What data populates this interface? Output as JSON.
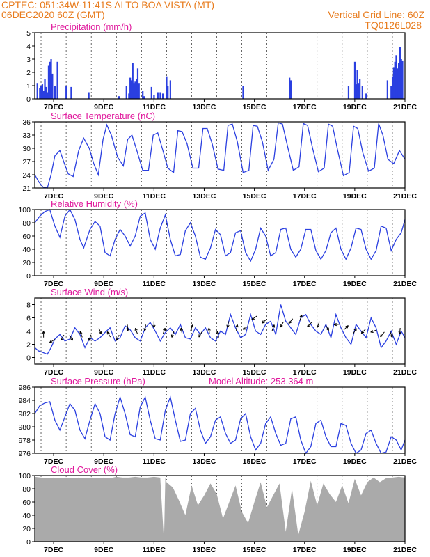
{
  "header": {
    "line1_left": "CPTEC:  051:34W-11:41S  ALTO BOA VISTA (MT)",
    "line2_left": "06DEC2020 60Z (GMT)",
    "line1_right": "Vertical Grid Line: 60Z",
    "line2_right": "TQ0126L028"
  },
  "x_ticks": [
    "7DEC",
    "9DEC",
    "11DEC",
    "13DEC",
    "15DEC",
    "17DEC",
    "19DEC",
    "21DEC"
  ],
  "colors": {
    "header": "#e87c1e",
    "panel_title": "#e0189c",
    "series": "#2a3fe0",
    "cloud": "#aaaaaa",
    "arrow": "#000000"
  },
  "chart_data": [
    {
      "type": "bar",
      "title": "Precipitation (mm/h)",
      "ylim": [
        0,
        5
      ],
      "yticks": [
        0,
        1,
        2,
        3,
        4,
        5
      ],
      "xlim": [
        6.25,
        21.0
      ],
      "x_unit": "day of December 2020",
      "x": [
        6.35,
        6.45,
        6.5,
        6.55,
        6.6,
        6.65,
        6.7,
        6.75,
        6.8,
        6.85,
        6.9,
        6.95,
        7.05,
        7.15,
        7.5,
        7.7,
        8.4,
        9.6,
        9.9,
        10.0,
        10.05,
        10.1,
        10.15,
        10.2,
        10.25,
        10.3,
        10.35,
        10.4,
        10.55,
        10.6,
        10.9,
        11.0,
        11.15,
        11.25,
        11.35,
        11.5,
        11.55,
        11.65,
        14.55,
        16.4,
        16.45,
        18.75,
        19.0,
        19.05,
        19.1,
        19.15,
        19.2,
        19.3,
        19.45,
        20.3,
        20.45,
        20.5,
        20.55,
        20.6,
        20.65,
        20.7,
        20.75,
        20.8,
        20.85,
        20.9
      ],
      "values": [
        1.2,
        0.8,
        1.0,
        1.1,
        0.6,
        1.5,
        0.9,
        0.5,
        2.5,
        2.8,
        3.0,
        1.9,
        1.0,
        2.8,
        1.0,
        0.9,
        0.5,
        0.2,
        1.0,
        0.4,
        1.6,
        1.4,
        2.7,
        1.2,
        1.3,
        1.5,
        2.3,
        1.2,
        0.6,
        0.2,
        0.9,
        0.3,
        0.5,
        0.5,
        0.4,
        1.7,
        1.0,
        1.4,
        1.0,
        1.6,
        1.4,
        1.0,
        2.8,
        1.1,
        2.2,
        1.2,
        1.5,
        1.0,
        0.4,
        1.4,
        1.0,
        1.7,
        2.4,
        2.8,
        3.3,
        2.3,
        2.7,
        3.9,
        3.0,
        2.9
      ]
    },
    {
      "type": "line",
      "title": "Surface Temperature (nC)",
      "ylim": [
        21,
        36
      ],
      "yticks": [
        21,
        24,
        27,
        30,
        33,
        36
      ],
      "xlim": [
        6.25,
        21.0
      ],
      "x_unit": "day of December 2020",
      "x": [
        6.25,
        6.42,
        6.58,
        6.75,
        6.9,
        7.05,
        7.25,
        7.4,
        7.58,
        7.78,
        8.0,
        8.2,
        8.42,
        8.6,
        8.78,
        8.97,
        9.12,
        9.3,
        9.55,
        9.78,
        9.95,
        10.12,
        10.3,
        10.55,
        10.78,
        10.97,
        11.15,
        11.33,
        11.55,
        11.78,
        11.95,
        12.12,
        12.32,
        12.55,
        12.78,
        12.95,
        13.12,
        13.32,
        13.55,
        13.78,
        13.95,
        14.12,
        14.32,
        14.55,
        14.78,
        14.95,
        15.12,
        15.32,
        15.55,
        15.78,
        15.95,
        16.12,
        16.32,
        16.55,
        16.78,
        16.95,
        17.12,
        17.32,
        17.55,
        17.78,
        17.95,
        18.12,
        18.32,
        18.55,
        18.78,
        18.95,
        19.12,
        19.32,
        19.55,
        19.78,
        19.95,
        20.12,
        20.32,
        20.55,
        20.78,
        21.0
      ],
      "values": [
        24.0,
        22.3,
        21.2,
        20.7,
        24.0,
        28.3,
        29.5,
        27.0,
        24.2,
        23.6,
        29.5,
        32.3,
        30.0,
        26.5,
        24.0,
        32.0,
        35.3,
        33.0,
        28.0,
        26.0,
        32.0,
        33.0,
        29.8,
        25.0,
        25.0,
        33.0,
        33.5,
        30.0,
        25.5,
        24.5,
        34.0,
        33.8,
        31.0,
        25.5,
        25.5,
        34.5,
        34.5,
        31.0,
        25.3,
        25.0,
        35.2,
        35.5,
        31.5,
        24.5,
        25.0,
        35.2,
        35.0,
        31.5,
        25.0,
        27.5,
        35.8,
        35.5,
        30.5,
        25.0,
        25.8,
        35.6,
        35.2,
        30.0,
        24.7,
        25.5,
        35.5,
        35.0,
        29.5,
        23.8,
        24.5,
        35.0,
        34.5,
        29.0,
        24.8,
        25.5,
        35.6,
        33.0,
        27.5,
        26.5,
        29.5,
        27.5
      ]
    },
    {
      "type": "line",
      "title": "Relative Humidity (%)",
      "ylim": [
        0,
        100
      ],
      "yticks": [
        0,
        20,
        40,
        60,
        80,
        100
      ],
      "xlim": [
        6.25,
        21.0
      ],
      "x_unit": "day of December 2020",
      "x": [
        6.25,
        6.45,
        6.65,
        6.85,
        7.05,
        7.25,
        7.45,
        7.65,
        7.85,
        8.05,
        8.2,
        8.45,
        8.65,
        8.85,
        9.05,
        9.25,
        9.45,
        9.65,
        9.85,
        10.05,
        10.25,
        10.45,
        10.65,
        10.85,
        11.05,
        11.25,
        11.45,
        11.65,
        11.85,
        12.05,
        12.25,
        12.45,
        12.65,
        12.85,
        13.05,
        13.25,
        13.45,
        13.65,
        13.85,
        14.05,
        14.25,
        14.45,
        14.65,
        14.85,
        15.05,
        15.25,
        15.45,
        15.65,
        15.85,
        16.05,
        16.25,
        16.45,
        16.65,
        16.85,
        17.05,
        17.25,
        17.45,
        17.65,
        17.85,
        18.05,
        18.25,
        18.45,
        18.65,
        18.85,
        19.05,
        19.25,
        19.45,
        19.65,
        19.85,
        20.05,
        20.25,
        20.45,
        20.65,
        20.85,
        21.0
      ],
      "values": [
        80,
        90,
        97,
        100,
        75,
        58,
        90,
        100,
        85,
        55,
        42,
        70,
        82,
        75,
        35,
        30,
        55,
        70,
        60,
        45,
        60,
        90,
        95,
        55,
        40,
        72,
        92,
        55,
        30,
        32,
        68,
        80,
        60,
        28,
        25,
        42,
        70,
        62,
        30,
        35,
        65,
        68,
        35,
        22,
        40,
        72,
        60,
        30,
        35,
        70,
        72,
        40,
        28,
        40,
        70,
        70,
        38,
        25,
        38,
        65,
        72,
        40,
        25,
        42,
        72,
        70,
        40,
        25,
        38,
        75,
        72,
        38,
        55,
        65,
        85
      ]
    },
    {
      "type": "line",
      "title": "Surface Wind (m/s)",
      "ylim": [
        -1,
        9
      ],
      "yticks": [
        0,
        2,
        4,
        6,
        8
      ],
      "xlim": [
        6.25,
        21.0
      ],
      "x_unit": "day of December 2020",
      "x": [
        6.25,
        6.4,
        6.55,
        6.75,
        6.9,
        7.05,
        7.25,
        7.45,
        7.65,
        7.85,
        8.05,
        8.25,
        8.45,
        8.65,
        8.85,
        9.05,
        9.25,
        9.45,
        9.65,
        9.85,
        10.05,
        10.25,
        10.45,
        10.65,
        10.85,
        11.05,
        11.25,
        11.45,
        11.65,
        11.85,
        12.05,
        12.25,
        12.45,
        12.65,
        12.85,
        13.05,
        13.25,
        13.45,
        13.65,
        13.85,
        14.05,
        14.25,
        14.45,
        14.65,
        14.85,
        15.05,
        15.25,
        15.45,
        15.65,
        15.85,
        16.05,
        16.25,
        16.45,
        16.65,
        16.85,
        17.05,
        17.25,
        17.45,
        17.65,
        17.85,
        18.05,
        18.25,
        18.45,
        18.65,
        18.85,
        19.05,
        19.25,
        19.45,
        19.65,
        19.85,
        20.05,
        20.25,
        20.45,
        20.65,
        20.85,
        21.0
      ],
      "values": [
        1.5,
        1.0,
        0.8,
        0.5,
        1.5,
        2.8,
        3.5,
        2.5,
        2.8,
        4.5,
        3.5,
        1.5,
        3.0,
        2.5,
        3.0,
        3.8,
        4.5,
        2.5,
        3.0,
        4.8,
        4.2,
        3.0,
        2.5,
        4.5,
        5.3,
        4.0,
        2.5,
        3.8,
        4.5,
        3.5,
        5.0,
        3.0,
        2.8,
        4.5,
        3.5,
        4.5,
        3.0,
        2.5,
        4.0,
        3.5,
        6.5,
        4.5,
        3.0,
        3.5,
        6.5,
        4.0,
        3.5,
        5.0,
        5.5,
        3.5,
        8.0,
        5.5,
        4.5,
        3.5,
        6.0,
        6.5,
        5.0,
        4.0,
        3.5,
        5.0,
        3.0,
        6.5,
        4.5,
        3.0,
        2.0,
        5.0,
        4.0,
        3.0,
        6.0,
        4.5,
        1.5,
        2.5,
        4.0,
        2.0,
        4.0,
        3.0
      ]
    },
    {
      "type": "line",
      "title": "Surface Pressure (hPa)",
      "annotation": "Model Altitude: 253.364 m",
      "ylim": [
        976,
        986
      ],
      "yticks": [
        976,
        978,
        980,
        982,
        984,
        986
      ],
      "xlim": [
        6.25,
        21.0
      ],
      "x_unit": "day of December 2020",
      "x": [
        6.25,
        6.45,
        6.65,
        6.85,
        7.05,
        7.25,
        7.45,
        7.65,
        7.85,
        8.05,
        8.25,
        8.45,
        8.65,
        8.85,
        9.05,
        9.25,
        9.45,
        9.65,
        9.85,
        10.05,
        10.25,
        10.45,
        10.65,
        10.85,
        11.05,
        11.25,
        11.45,
        11.65,
        11.85,
        12.05,
        12.25,
        12.45,
        12.65,
        12.85,
        13.05,
        13.25,
        13.45,
        13.65,
        13.85,
        14.05,
        14.25,
        14.45,
        14.65,
        14.85,
        15.05,
        15.25,
        15.45,
        15.65,
        15.85,
        16.05,
        16.25,
        16.45,
        16.65,
        16.85,
        17.05,
        17.25,
        17.45,
        17.65,
        17.85,
        18.05,
        18.25,
        18.45,
        18.65,
        18.85,
        19.05,
        19.25,
        19.45,
        19.65,
        19.85,
        20.05,
        20.25,
        20.45,
        20.65,
        20.85,
        21.0
      ],
      "values": [
        982.0,
        983.2,
        983.6,
        983.8,
        981.0,
        979.5,
        981.5,
        983.5,
        982.5,
        979.5,
        978.2,
        981.0,
        983.5,
        982.0,
        978.5,
        978.0,
        982.0,
        984.5,
        982.0,
        978.8,
        978.5,
        983.0,
        984.5,
        981.0,
        978.2,
        978.0,
        982.5,
        984.5,
        981.0,
        977.8,
        978.0,
        982.0,
        982.8,
        979.5,
        977.5,
        978.5,
        981.0,
        981.5,
        979.0,
        977.5,
        978.0,
        981.2,
        982.0,
        978.5,
        976.5,
        977.5,
        980.5,
        981.5,
        979.0,
        977.2,
        977.5,
        981.2,
        981.5,
        978.0,
        976.0,
        977.0,
        980.5,
        981.0,
        978.5,
        977.0,
        977.0,
        980.5,
        980.2,
        977.5,
        976.0,
        976.5,
        979.0,
        979.5,
        977.5,
        976.0,
        976.2,
        978.5,
        978.0,
        976.5,
        978.0
      ]
    },
    {
      "type": "area",
      "title": "Cloud Cover (%)",
      "ylim": [
        0,
        100
      ],
      "yticks": [
        0,
        20,
        40,
        60,
        80,
        100
      ],
      "xlim": [
        6.25,
        21.0
      ],
      "x_unit": "day of December 2020",
      "x": [
        6.25,
        6.5,
        6.75,
        7.0,
        7.25,
        7.5,
        7.75,
        8.0,
        8.25,
        8.5,
        8.75,
        9.0,
        9.25,
        9.5,
        9.75,
        10.0,
        10.25,
        10.5,
        10.75,
        11.0,
        11.25,
        11.4,
        11.45,
        11.5,
        11.75,
        12.0,
        12.25,
        12.5,
        12.75,
        13.0,
        13.25,
        13.5,
        13.75,
        14.0,
        14.25,
        14.5,
        14.75,
        15.0,
        15.25,
        15.5,
        15.75,
        16.0,
        16.25,
        16.5,
        16.75,
        17.0,
        17.25,
        17.5,
        17.75,
        18.0,
        18.25,
        18.5,
        18.75,
        19.0,
        19.25,
        19.5,
        19.75,
        20.0,
        20.25,
        20.5,
        20.75,
        21.0
      ],
      "values": [
        98,
        97,
        96,
        97,
        96,
        97,
        96,
        97,
        96,
        97,
        96,
        97,
        96,
        98,
        97,
        97,
        98,
        97,
        97,
        98,
        97,
        0,
        97,
        90,
        82,
        62,
        40,
        85,
        55,
        70,
        88,
        72,
        35,
        60,
        85,
        45,
        28,
        60,
        90,
        52,
        70,
        88,
        15,
        80,
        10,
        45,
        92,
        55,
        88,
        72,
        60,
        85,
        58,
        95,
        70,
        90,
        97,
        90,
        96,
        97,
        98,
        97
      ]
    }
  ],
  "wind_arrows": {
    "x": [
      6.6,
      6.95,
      7.35,
      7.7,
      8.1,
      8.45,
      8.85,
      9.2,
      9.55,
      9.95,
      10.3,
      10.65,
      11.0,
      11.4,
      11.75,
      12.1,
      12.5,
      12.85,
      13.2,
      13.55,
      13.95,
      14.3,
      14.65,
      15.0,
      15.4,
      15.75,
      16.1,
      16.45,
      16.85,
      17.2,
      17.55,
      17.9,
      18.3,
      18.65,
      19.0,
      19.35,
      19.75,
      20.1,
      20.45,
      20.8
    ],
    "direction_deg": [
      90,
      210,
      240,
      300,
      110,
      250,
      290,
      120,
      240,
      275,
      110,
      260,
      270,
      70,
      250,
      100,
      70,
      240,
      95,
      105,
      260,
      80,
      210,
      215,
      220,
      70,
      240,
      230,
      70,
      225,
      250,
      300,
      185,
      45,
      60,
      225,
      200,
      230,
      290,
      265
    ],
    "speed": [
      3.5,
      2.5,
      3.0,
      3.0,
      3.5,
      3.0,
      4.0,
      3.5,
      3.0,
      4.5,
      4.0,
      4.5,
      5.0,
      4.0,
      3.5,
      4.0,
      4.5,
      3.5,
      4.0,
      3.5,
      5.0,
      4.5,
      4.5,
      6.0,
      5.5,
      4.5,
      5.0,
      5.5,
      6.0,
      5.0,
      5.0,
      4.5,
      5.0,
      4.5,
      4.0,
      4.0,
      4.0,
      3.5,
      3.5,
      4.0
    ]
  }
}
